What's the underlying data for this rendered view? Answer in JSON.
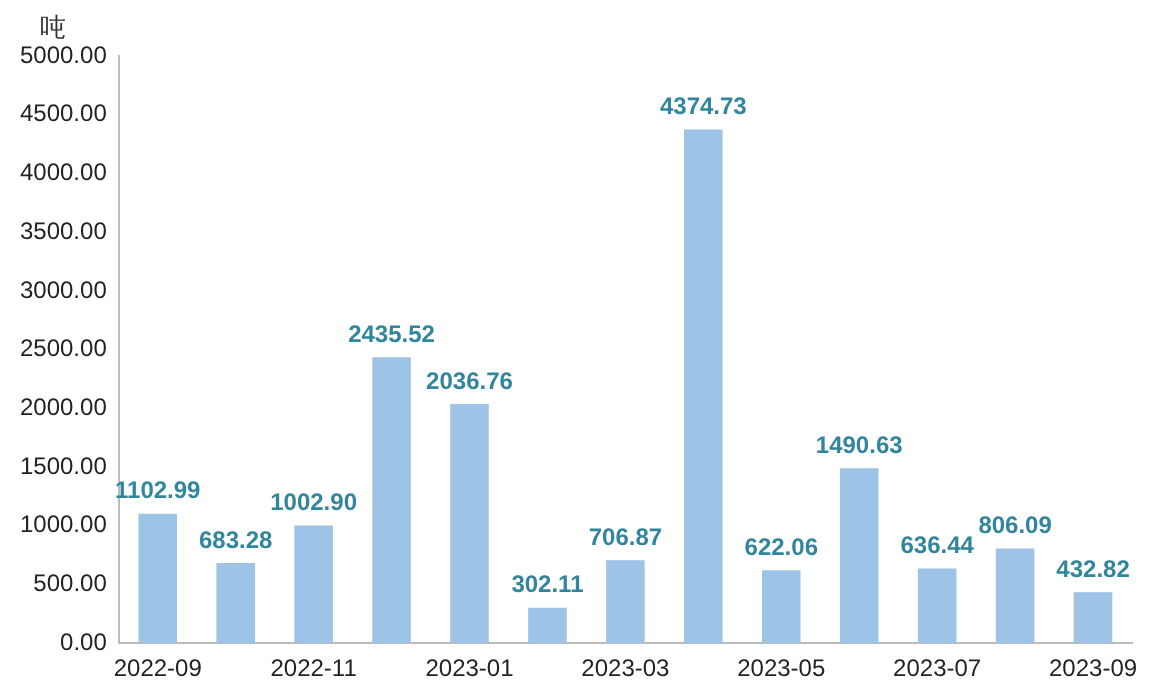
{
  "chart_data": {
    "type": "bar",
    "ylabel": "吨",
    "categories": [
      "2022-09",
      null,
      "2022-11",
      null,
      "2023-01",
      null,
      "2023-03",
      null,
      "2023-05",
      null,
      "2023-07",
      null,
      "2023-09"
    ],
    "values": [
      1102.99,
      683.28,
      1002.9,
      2435.52,
      2036.76,
      302.11,
      706.87,
      4374.73,
      622.06,
      1490.63,
      636.44,
      806.09,
      432.82
    ],
    "value_labels": [
      "1102.99",
      "683.28",
      "1002.90",
      "2435.52",
      "2036.76",
      "302.11",
      "706.87",
      "4374.73",
      "622.06",
      "1490.63",
      "636.44",
      "806.09",
      "432.82"
    ],
    "color": "#9dc3e6",
    "ylim": [
      0,
      5000
    ],
    "yticks": [
      {
        "value": 0,
        "label": "0.00"
      },
      {
        "value": 500,
        "label": "500.00"
      },
      {
        "value": 1000,
        "label": "1000.00"
      },
      {
        "value": 1500,
        "label": "1500.00"
      },
      {
        "value": 2000,
        "label": "2000.00"
      },
      {
        "value": 2500,
        "label": "2500.00"
      },
      {
        "value": 3000,
        "label": "3000.00"
      },
      {
        "value": 3500,
        "label": "3500.00"
      },
      {
        "value": 4000,
        "label": "4000.00"
      },
      {
        "value": 4500,
        "label": "4500.00"
      },
      {
        "value": 5000,
        "label": "5000.00"
      }
    ],
    "grid": false,
    "legend": false
  }
}
